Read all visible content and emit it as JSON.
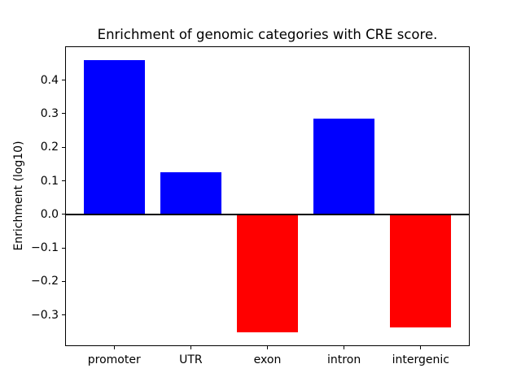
{
  "chart_data": {
    "type": "bar",
    "title": "Enrichment of genomic categories with CRE score.",
    "xlabel": "",
    "ylabel": "Enrichment (log10)",
    "categories": [
      "promoter",
      "UTR",
      "exon",
      "intron",
      "intergenic"
    ],
    "values": [
      0.46,
      0.126,
      -0.352,
      0.286,
      -0.338
    ],
    "bar_colors": [
      "#0000ff",
      "#0000ff",
      "#ff0000",
      "#0000ff",
      "#ff0000"
    ],
    "positive_color": "#0000ff",
    "negative_color": "#ff0000",
    "bar_width": 0.8,
    "xlim": [
      -0.64,
      4.64
    ],
    "ylim": [
      -0.393,
      0.501
    ],
    "y_ticks": [
      {
        "value": 0.4,
        "label": "0.4"
      },
      {
        "value": 0.3,
        "label": "0.3"
      },
      {
        "value": 0.2,
        "label": "0.2"
      },
      {
        "value": 0.1,
        "label": "0.1"
      },
      {
        "value": 0.0,
        "label": "0.0"
      },
      {
        "value": -0.1,
        "label": "−0.1"
      },
      {
        "value": -0.2,
        "label": "−0.2"
      },
      {
        "value": -0.3,
        "label": "−0.3"
      }
    ],
    "zero_line": true,
    "grid": false,
    "legend": false,
    "background_color": "#ffffff",
    "frame_color": "#000000",
    "text_color": "#000000"
  }
}
